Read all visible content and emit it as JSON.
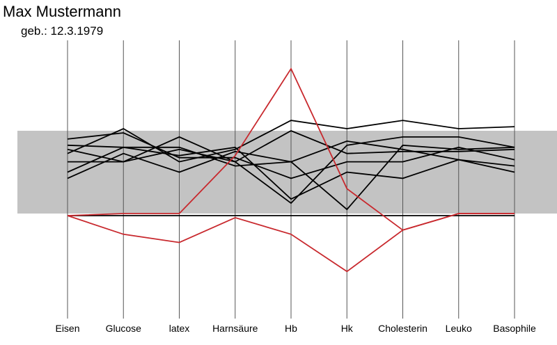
{
  "header": {
    "name": "Max Mustermann",
    "dob": "geb.: 12.3.1979"
  },
  "chart_data": {
    "type": "line",
    "categories": [
      "Eisen",
      "Glucose",
      "latex",
      "Harnsäure",
      "Hb",
      "Hk",
      "Cholesterin",
      "Leuko",
      "Basophile"
    ],
    "normal_band": [
      -1,
      1
    ],
    "ylim": [
      -2.6,
      2.9
    ],
    "grid": false,
    "series": [
      {
        "values": [
          0.25,
          0.25,
          0.55,
          0.25,
          1.0,
          0.45,
          0.5,
          0.5,
          0.55
        ],
        "color": "#000000"
      },
      {
        "values": [
          0.55,
          0.25,
          0.85,
          0.25,
          -0.75,
          0.65,
          0.85,
          0.85,
          0.6
        ],
        "color": "#000000"
      },
      {
        "values": [
          0.45,
          1.05,
          0.25,
          0.55,
          1.25,
          1.05,
          1.25,
          1.05,
          1.1
        ],
        "color": "#000000"
      },
      {
        "values": [
          0.8,
          0.95,
          0.35,
          0.35,
          -0.15,
          0.25,
          0.25,
          0.6,
          0.3
        ],
        "color": "#000000"
      },
      {
        "values": [
          0.0,
          0.6,
          0.4,
          0.6,
          -0.65,
          0.0,
          -0.15,
          0.3,
          0.0
        ],
        "color": "#000000"
      },
      {
        "values": [
          0.65,
          0.6,
          0.6,
          0.15,
          0.25,
          0.75,
          0.55,
          0.3,
          0.15
        ],
        "color": "#000000"
      },
      {
        "values": [
          -0.15,
          0.45,
          0.0,
          0.5,
          0.25,
          -0.9,
          0.65,
          0.55,
          0.6
        ],
        "color": "#000000"
      },
      {
        "values": [
          -1.05,
          -1.05,
          -1.05,
          -1.05,
          -1.05,
          -1.05,
          -1.05,
          -1.05,
          -1.05
        ],
        "color": "#000000"
      },
      {
        "values": [
          -1.05,
          -1.5,
          -1.7,
          -1.1,
          -1.5,
          -2.4,
          -1.4,
          -1.0,
          -1.0
        ],
        "color": "#c8282d"
      },
      {
        "values": [
          -1.05,
          -1.0,
          -1.0,
          0.4,
          2.5,
          -0.4,
          -1.4,
          -1.0,
          -1.0
        ],
        "color": "#c8282d"
      }
    ]
  }
}
